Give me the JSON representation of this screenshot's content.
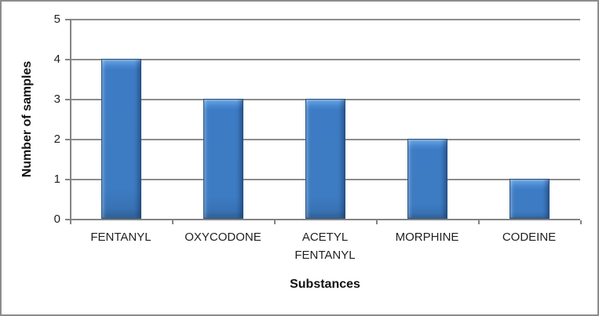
{
  "chart_data": {
    "type": "bar",
    "title": "",
    "categories": [
      "FENTANYL",
      "OXYCODONE",
      "ACETYL FENTANYL",
      "MORPHINE",
      "CODEINE"
    ],
    "values": [
      4,
      3,
      3,
      2,
      1
    ],
    "xlabel": "Substances",
    "ylabel": "Number of samples",
    "ylim": [
      0,
      5
    ],
    "yticks": [
      0,
      1,
      2,
      3,
      4,
      5
    ],
    "grid": true,
    "legend": false,
    "colors": {
      "bar_fill": "#3D7BC2",
      "bar_border": "#26507E",
      "bar_highlight": "#8FBCEC",
      "gridline": "#8C8C8C",
      "axis_line": "#848484",
      "text": "#1F1F1F",
      "frame_border": "#8C8C8C",
      "background": "#FFFFFF"
    }
  }
}
